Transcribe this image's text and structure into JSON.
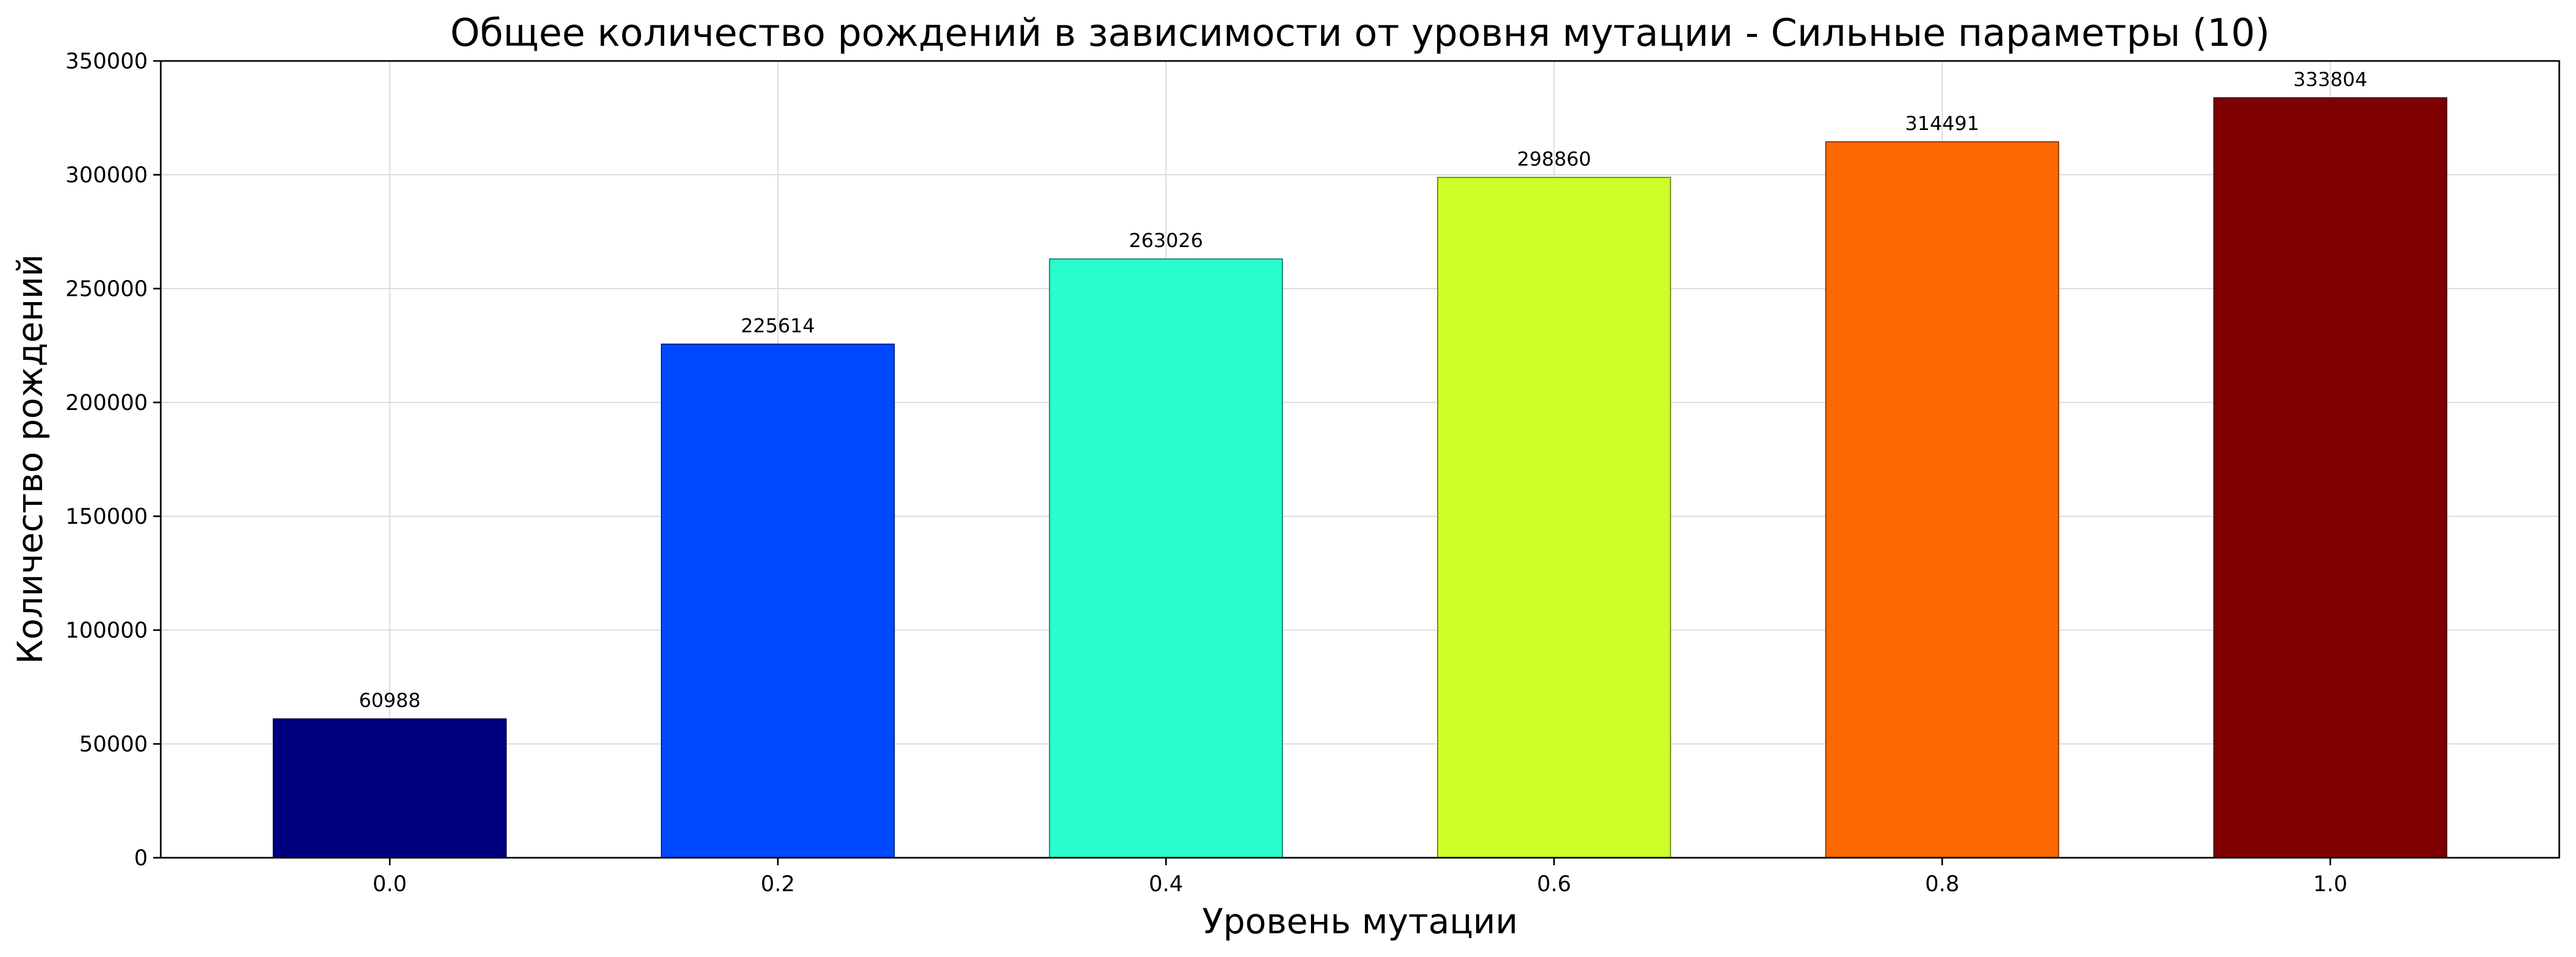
{
  "chart_data": {
    "type": "bar",
    "title": "Общее количество рождений в зависимости от уровня мутации - Сильные параметры (10)",
    "xlabel": "Уровень мутации",
    "ylabel": "Количество рождений",
    "categories": [
      "0.0",
      "0.2",
      "0.4",
      "0.6",
      "0.8",
      "1.0"
    ],
    "values": [
      60988,
      225614,
      263026,
      298860,
      314491,
      333804
    ],
    "bar_colors": [
      "#00007f",
      "#0048ff",
      "#29ffce",
      "#ceff29",
      "#ff6800",
      "#7f0000"
    ],
    "bar_edge_colors": [
      "#000040",
      "#002480",
      "#158067",
      "#678014",
      "#803400",
      "#400000"
    ],
    "ylim": [
      0,
      350000
    ],
    "yticks": [
      0,
      50000,
      100000,
      150000,
      200000,
      250000,
      300000,
      350000
    ],
    "grid": true,
    "legend": "none"
  }
}
